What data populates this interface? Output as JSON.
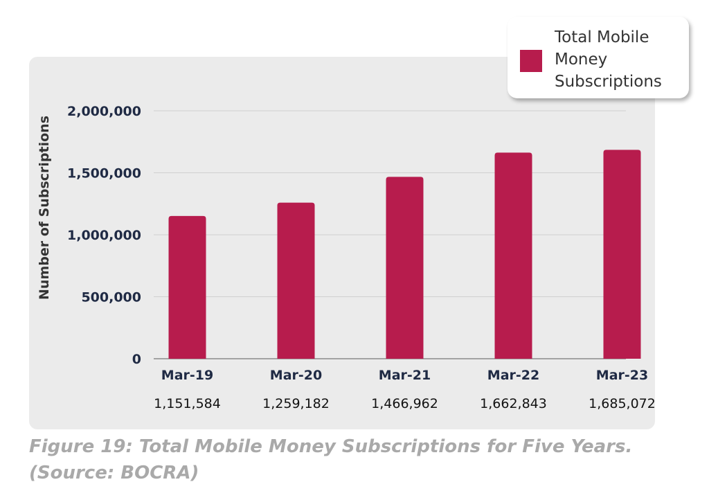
{
  "chart_data": {
    "type": "bar",
    "categories": [
      "Mar-19",
      "Mar-20",
      "Mar-21",
      "Mar-22",
      "Mar-23"
    ],
    "series": [
      {
        "name": "Total Mobile Money Subscriptions",
        "values": [
          1151584,
          1259182,
          1466962,
          1662843,
          1685072
        ]
      }
    ],
    "value_labels": [
      "1,151,584",
      "1,259,182",
      "1,466,962",
      "1,662,843",
      "1,685,072"
    ],
    "title": "",
    "xlabel": "",
    "ylabel": "Number of Subscriptions",
    "ylim": [
      0,
      2000000
    ],
    "yticks": [
      0,
      500000,
      1000000,
      1500000,
      2000000
    ],
    "ytick_labels": [
      "0",
      "500,000",
      "1,000,000",
      "1,500,000",
      "2,000,000"
    ],
    "grid": true,
    "legend_position": "top-right",
    "colors": {
      "bar": "#b71c4d",
      "grid": "#cfcfcf",
      "axis": "#8a8a8a",
      "panel": "#ebebeb"
    }
  },
  "legend": {
    "label": "Total Mobile Money Subscriptions"
  },
  "caption": "Figure 19: Total Mobile Money Subscriptions for Five Years. (Source: BOCRA)"
}
